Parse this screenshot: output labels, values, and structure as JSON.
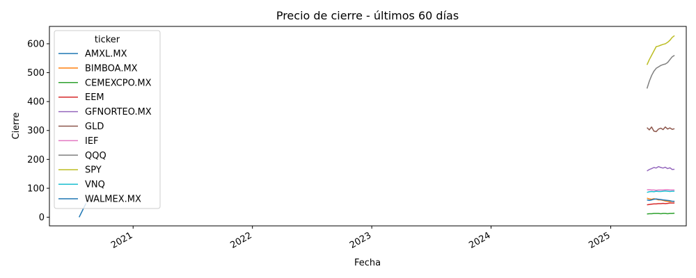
{
  "chart_data": {
    "type": "line",
    "title": "Precio de cierre - últimos 60 días",
    "xlabel": "Fecha",
    "ylabel": "Cierre",
    "xlim": [
      "2020-04-20",
      "2025-08-20"
    ],
    "ylim": [
      -30,
      660
    ],
    "x_ticks": [
      "2021-01-01",
      "2022-01-01",
      "2023-01-01",
      "2024-01-01",
      "2025-01-01"
    ],
    "x_tick_labels": [
      "2021",
      "2022",
      "2023",
      "2024",
      "2025"
    ],
    "y_ticks": [
      0,
      100,
      200,
      300,
      400,
      500,
      600
    ],
    "y_tick_labels": [
      "0",
      "100",
      "200",
      "300",
      "400",
      "500",
      "600"
    ],
    "grid": false,
    "legend": {
      "title": "ticker",
      "position": "upper-left"
    },
    "series": [
      {
        "name": "AMXL.MX",
        "color": "#1f77b4",
        "x": [
          "2020-07-20",
          "2020-08-10"
        ],
        "y": [
          0,
          48
        ]
      },
      {
        "name": "BIMBOA.MX",
        "color": "#ff7f0e",
        "x": [
          "2025-04-22",
          "2025-04-29",
          "2025-05-06",
          "2025-05-13",
          "2025-05-20",
          "2025-05-27",
          "2025-06-03",
          "2025-06-10",
          "2025-06-17",
          "2025-06-24",
          "2025-07-01",
          "2025-07-08",
          "2025-07-15"
        ],
        "y": [
          66,
          63,
          62,
          64,
          62,
          60,
          60,
          58,
          56,
          55,
          54,
          55,
          54
        ]
      },
      {
        "name": "CEMEXCPO.MX",
        "color": "#2ca02c",
        "x": [
          "2025-04-22",
          "2025-04-29",
          "2025-05-06",
          "2025-05-13",
          "2025-05-20",
          "2025-05-27",
          "2025-06-03",
          "2025-06-10",
          "2025-06-17",
          "2025-06-24",
          "2025-07-01",
          "2025-07-08",
          "2025-07-15"
        ],
        "y": [
          11,
          12,
          12,
          13,
          13,
          13,
          12,
          13,
          13,
          12,
          13,
          13,
          14
        ]
      },
      {
        "name": "EEM",
        "color": "#d62728",
        "x": [
          "2025-04-22",
          "2025-04-29",
          "2025-05-06",
          "2025-05-13",
          "2025-05-20",
          "2025-05-27",
          "2025-06-03",
          "2025-06-10",
          "2025-06-17",
          "2025-06-24",
          "2025-07-01",
          "2025-07-08",
          "2025-07-15"
        ],
        "y": [
          43,
          44,
          45,
          46,
          46,
          47,
          47,
          48,
          47,
          48,
          49,
          49,
          49
        ]
      },
      {
        "name": "GFNORTEO.MX",
        "color": "#9467bd",
        "x": [
          "2025-04-22",
          "2025-04-29",
          "2025-05-06",
          "2025-05-13",
          "2025-05-20",
          "2025-05-27",
          "2025-06-03",
          "2025-06-10",
          "2025-06-17",
          "2025-06-24",
          "2025-07-01",
          "2025-07-08",
          "2025-07-15"
        ],
        "y": [
          160,
          165,
          168,
          172,
          170,
          175,
          172,
          170,
          173,
          168,
          171,
          165,
          166
        ]
      },
      {
        "name": "GLD",
        "color": "#8c564b",
        "x": [
          "2025-04-22",
          "2025-04-29",
          "2025-05-06",
          "2025-05-13",
          "2025-05-20",
          "2025-05-27",
          "2025-06-03",
          "2025-06-10",
          "2025-06-17",
          "2025-06-24",
          "2025-07-01",
          "2025-07-08",
          "2025-07-15"
        ],
        "y": [
          310,
          302,
          312,
          298,
          296,
          305,
          308,
          303,
          312,
          305,
          309,
          304,
          306
        ]
      },
      {
        "name": "IEF",
        "color": "#e377c2",
        "x": [
          "2025-04-22",
          "2025-04-29",
          "2025-05-06",
          "2025-05-13",
          "2025-05-20",
          "2025-05-27",
          "2025-06-03",
          "2025-06-10",
          "2025-06-17",
          "2025-06-24",
          "2025-07-01",
          "2025-07-08",
          "2025-07-15"
        ],
        "y": [
          95,
          95,
          94,
          94,
          93,
          94,
          94,
          94,
          95,
          95,
          94,
          94,
          94
        ]
      },
      {
        "name": "QQQ",
        "color": "#7f7f7f",
        "x": [
          "2025-04-22",
          "2025-04-29",
          "2025-05-06",
          "2025-05-13",
          "2025-05-20",
          "2025-05-27",
          "2025-06-03",
          "2025-06-10",
          "2025-06-17",
          "2025-06-24",
          "2025-07-01",
          "2025-07-08",
          "2025-07-15"
        ],
        "y": [
          445,
          470,
          490,
          505,
          515,
          520,
          525,
          528,
          530,
          535,
          545,
          555,
          560
        ]
      },
      {
        "name": "SPY",
        "color": "#bcbd22",
        "x": [
          "2025-04-22",
          "2025-04-29",
          "2025-05-06",
          "2025-05-13",
          "2025-05-20",
          "2025-05-27",
          "2025-06-03",
          "2025-06-10",
          "2025-06-17",
          "2025-06-24",
          "2025-07-01",
          "2025-07-08",
          "2025-07-15"
        ],
        "y": [
          527,
          545,
          560,
          575,
          590,
          592,
          595,
          598,
          600,
          605,
          612,
          622,
          628
        ]
      },
      {
        "name": "VNQ",
        "color": "#17becf",
        "x": [
          "2025-04-22",
          "2025-04-29",
          "2025-05-06",
          "2025-05-13",
          "2025-05-20",
          "2025-05-27",
          "2025-06-03",
          "2025-06-10",
          "2025-06-17",
          "2025-06-24",
          "2025-07-01",
          "2025-07-08",
          "2025-07-15"
        ],
        "y": [
          86,
          88,
          89,
          88,
          90,
          89,
          89,
          90,
          91,
          90,
          89,
          90,
          90
        ]
      },
      {
        "name": "WALMEX.MX",
        "color": "#1f77b4",
        "x": [
          "2025-04-22",
          "2025-04-29",
          "2025-05-06",
          "2025-05-13",
          "2025-05-20",
          "2025-05-27",
          "2025-06-03",
          "2025-06-10",
          "2025-06-17",
          "2025-06-24",
          "2025-07-01",
          "2025-07-08",
          "2025-07-15"
        ],
        "y": [
          60,
          58,
          60,
          62,
          63,
          62,
          61,
          60,
          59,
          58,
          57,
          55,
          55
        ]
      }
    ]
  }
}
